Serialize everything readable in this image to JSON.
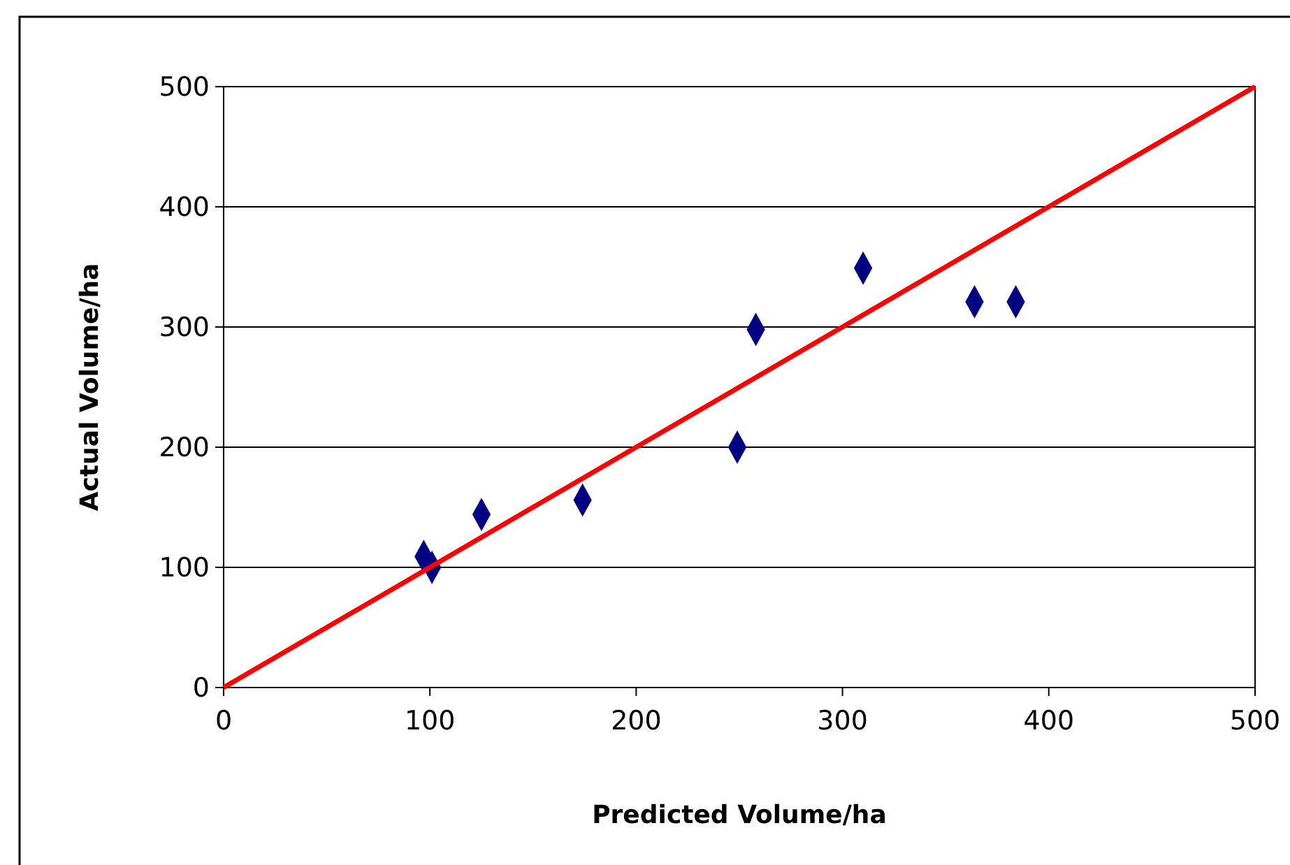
{
  "chart_data": {
    "type": "scatter",
    "xlabel": "Predicted Volume/ha",
    "ylabel": "Actual Volume/ha",
    "xlim": [
      0,
      500
    ],
    "ylim": [
      0,
      500
    ],
    "xticks": [
      0,
      100,
      200,
      300,
      400,
      500
    ],
    "yticks": [
      0,
      100,
      200,
      300,
      400,
      500
    ],
    "grid": "y",
    "series": [
      {
        "color": "#000080",
        "marker": "diamond",
        "x": [
          97,
          101,
          125,
          174,
          249,
          258,
          310,
          364,
          384
        ],
        "values": [
          109,
          100,
          144,
          156,
          200,
          298,
          349,
          321,
          321
        ]
      },
      {
        "type": "line",
        "color": "#ff0000",
        "x": [
          0,
          500
        ],
        "values": [
          0,
          500
        ]
      }
    ]
  }
}
